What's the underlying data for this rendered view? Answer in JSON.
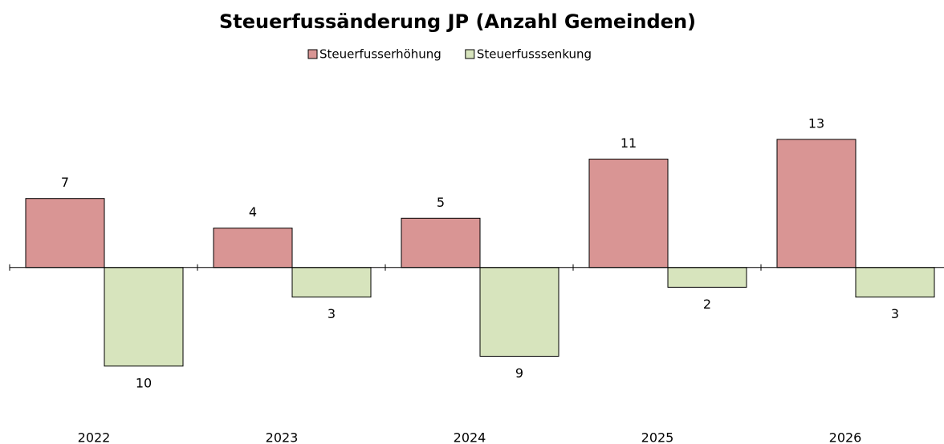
{
  "chart_data": {
    "type": "bar",
    "title": "Steuerfussänderung JP (Anzahl Gemeinden)",
    "categories": [
      "2022",
      "2023",
      "2024",
      "2025",
      "2026"
    ],
    "series": [
      {
        "name": "Steuerfusserhöhung",
        "color": "#d99594",
        "values": [
          7,
          4,
          5,
          11,
          13
        ]
      },
      {
        "name": "Steuerfusssenkung",
        "color": "#d7e4bd",
        "values": [
          -10,
          -3,
          -9,
          -2,
          -3
        ],
        "value_labels": [
          "10",
          "3",
          "9",
          "2",
          "3"
        ]
      }
    ],
    "ylim": [
      -14,
      16
    ],
    "legend": "top"
  }
}
